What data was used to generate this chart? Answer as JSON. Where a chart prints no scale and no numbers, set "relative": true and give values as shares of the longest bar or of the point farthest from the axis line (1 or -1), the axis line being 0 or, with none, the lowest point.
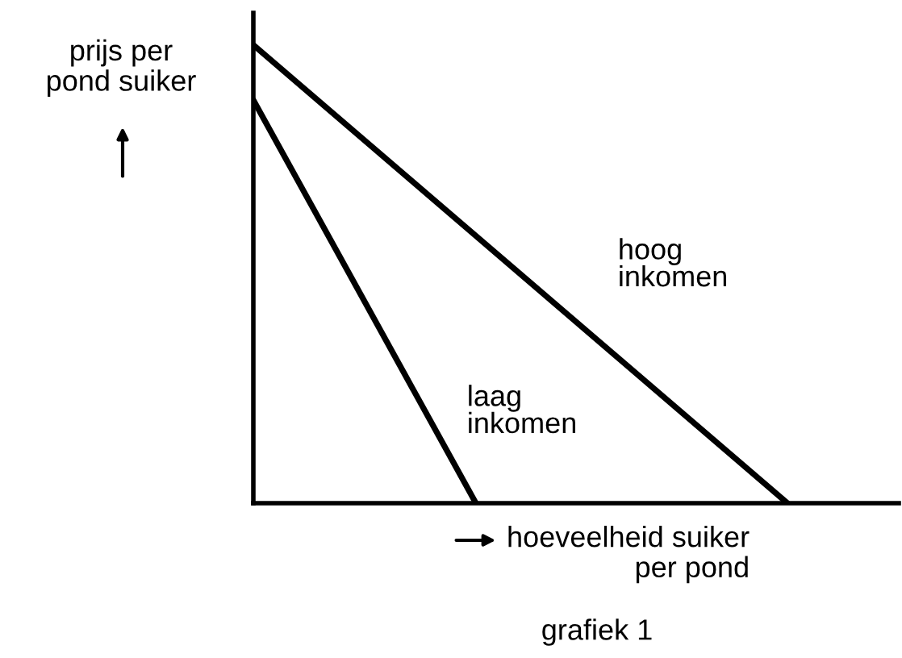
{
  "chart_data": {
    "type": "line",
    "relative": true,
    "xlabel": "hoeveelheid suiker\nper pond",
    "ylabel": "prijs per\npond suiker",
    "annotations": [
      "grafiek 1"
    ],
    "categories": [
      null,
      null,
      null,
      null,
      null,
      null,
      null,
      null,
      null,
      null,
      null,
      null,
      null,
      null,
      null
    ],
    "marker": "none",
    "line_style": "solid",
    "series": [
      {
        "name": "laag\ninkomen",
        "color": "#000000",
        "values": [
          0.88,
          null,
          null,
          null,
          null,
          0,
          null,
          null,
          null,
          null,
          null,
          null,
          null,
          null,
          null
        ]
      },
      {
        "name": "hoog\ninkomen",
        "color": "#000000",
        "values": [
          1,
          null,
          null,
          null,
          null,
          null,
          null,
          null,
          null,
          null,
          null,
          null,
          0,
          null,
          null
        ]
      }
    ]
  }
}
